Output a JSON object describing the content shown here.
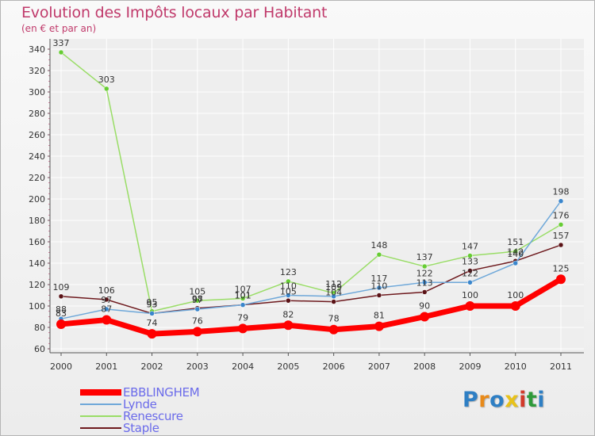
{
  "header": {
    "title": "Evolution des Impôts locaux par Habitant",
    "subtitle": "(en € et par an)"
  },
  "logo": {
    "text": "Proxiti",
    "letters": [
      {
        "ch": "P",
        "color": "#2e7fc4"
      },
      {
        "ch": "r",
        "color": "#e88a1a"
      },
      {
        "ch": "o",
        "color": "#2e7fc4"
      },
      {
        "ch": "x",
        "color": "#e8c21a"
      },
      {
        "ch": "i",
        "color": "#d23a2a"
      },
      {
        "ch": "t",
        "color": "#2e9a3a"
      },
      {
        "ch": "i",
        "color": "#2e7fc4"
      }
    ]
  },
  "colors": {
    "title": "#c03a6b",
    "grid": "#ffffff",
    "axis": "#555555",
    "tick_label": "#333333"
  },
  "chart_data": {
    "type": "line",
    "title": "Evolution des Impôts locaux par Habitant",
    "subtitle": "(en € et par an)",
    "xlabel": "",
    "ylabel": "",
    "ylim": [
      60,
      340
    ],
    "yticks": [
      60,
      80,
      100,
      120,
      140,
      160,
      180,
      200,
      220,
      240,
      260,
      280,
      300,
      320,
      340
    ],
    "categories": [
      "2000",
      "2001",
      "2002",
      "2003",
      "2004",
      "2005",
      "2006",
      "2007",
      "2008",
      "2009",
      "2010",
      "2011"
    ],
    "grid": true,
    "legend_position": "bottom-left",
    "series": [
      {
        "name": "Staple",
        "color": "#6e1a1e",
        "marker": "#5a1216",
        "width": 1.5,
        "values": [
          109,
          106,
          93,
          98,
          101,
          105,
          104,
          110,
          113,
          133,
          142,
          157
        ],
        "labels": [
          "109",
          "106",
          "93",
          "98",
          "101",
          "105",
          "104",
          "110",
          "113",
          "133",
          "142",
          "157"
        ]
      },
      {
        "name": "Renescure",
        "color": "#99dd66",
        "marker": "#66cc33",
        "width": 1.5,
        "values": [
          337,
          303,
          95,
          105,
          107,
          123,
          112,
          148,
          137,
          147,
          151,
          176
        ],
        "labels": [
          "337",
          "303",
          "95",
          "105",
          "107",
          "123",
          "112",
          "148",
          "137",
          "147",
          "151",
          "176"
        ]
      },
      {
        "name": "Lynde",
        "color": "#6fa8d9",
        "marker": "#3a86cc",
        "width": 1.5,
        "values": [
          88,
          97,
          93,
          97,
          101,
          110,
          109,
          117,
          122,
          122,
          140,
          198
        ],
        "labels": [
          "88",
          "97",
          "93",
          "97",
          "101",
          "110",
          "109",
          "117",
          "122",
          "122",
          "140",
          "198"
        ]
      },
      {
        "name": "EBBLINGHEM",
        "color": "#ff0000",
        "marker": "#ff0000",
        "width": 7,
        "values": [
          83,
          87,
          74,
          76,
          79,
          82,
          78,
          81,
          90,
          100,
          100,
          125
        ],
        "labels": [
          "83",
          "87",
          "74",
          "76",
          "79",
          "82",
          "78",
          "81",
          "90",
          "100",
          "100",
          "125"
        ]
      }
    ],
    "legend": [
      "EBBLINGHEM",
      "Lynde",
      "Renescure",
      "Staple"
    ]
  }
}
